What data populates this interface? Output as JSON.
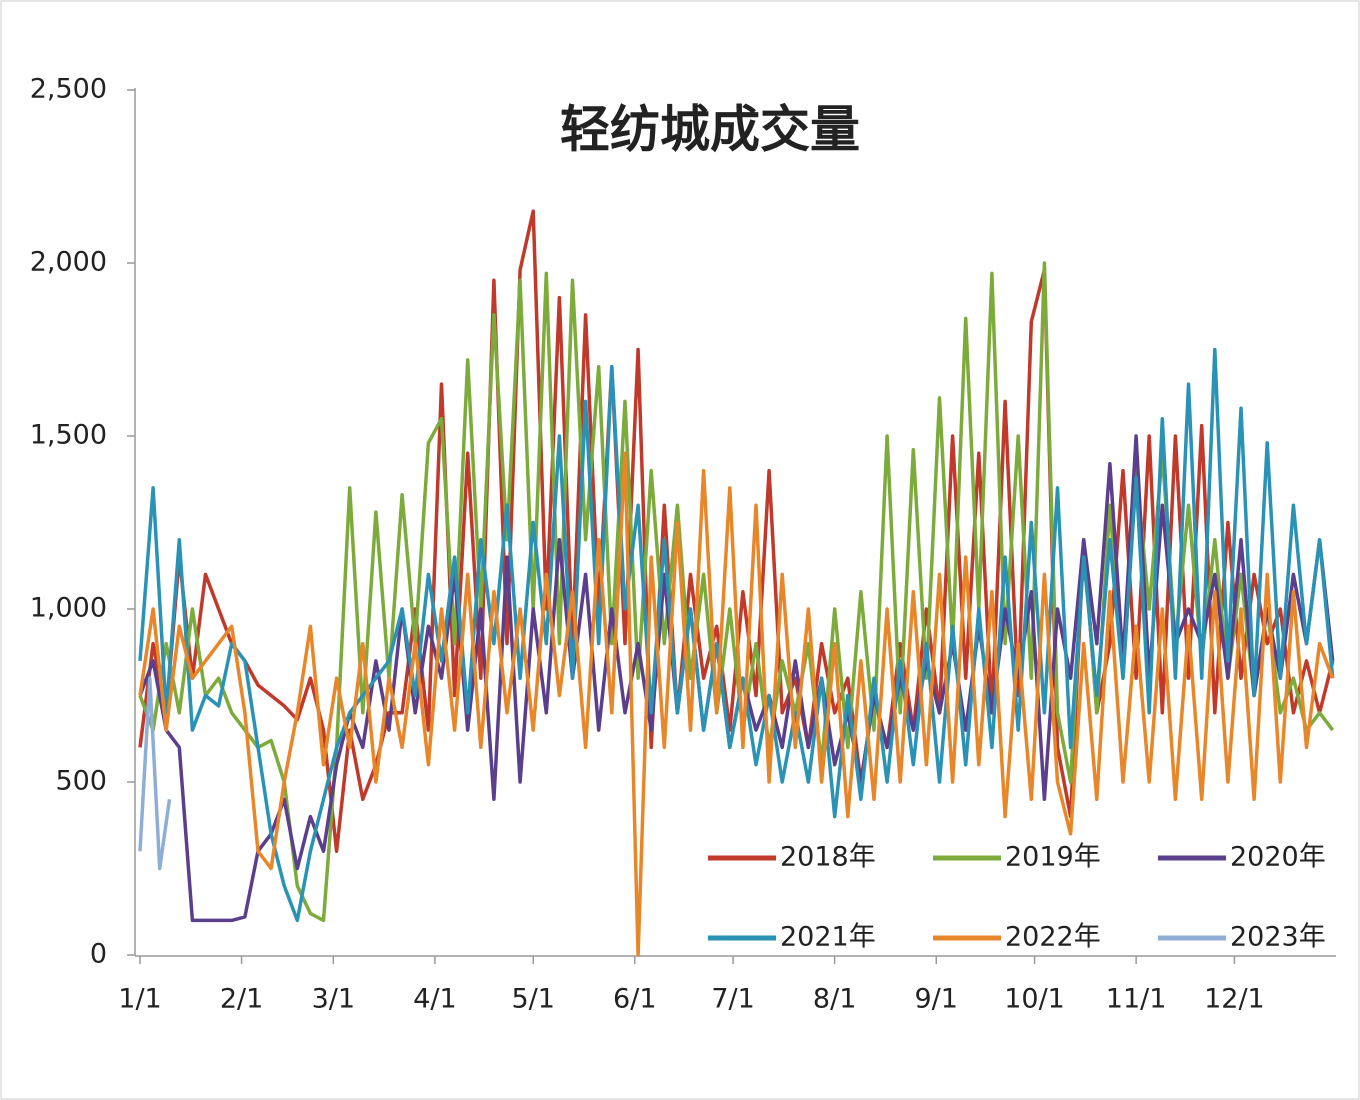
{
  "chart_data": {
    "type": "line",
    "title": "轻纺城成交量",
    "x": [
      0,
      4,
      8,
      12,
      16,
      20,
      24,
      28,
      32,
      36,
      40,
      44,
      48,
      52,
      56,
      60,
      64,
      68,
      72,
      76,
      80,
      84,
      88,
      92,
      96,
      100,
      104,
      108,
      112,
      116,
      120,
      124,
      128,
      132,
      136,
      140,
      144,
      148,
      152,
      156,
      160,
      164,
      168,
      172,
      176,
      180,
      184,
      188,
      192,
      196,
      200,
      204,
      208,
      212,
      216,
      220,
      224,
      228,
      232,
      236,
      240,
      244,
      248,
      252,
      256,
      260,
      264,
      268,
      272,
      276,
      280,
      284,
      288,
      292,
      296,
      300,
      304,
      308,
      312,
      316,
      320,
      324,
      328,
      332,
      336,
      340,
      344,
      348,
      352,
      356,
      360,
      364
    ],
    "xlim": [
      0,
      365
    ],
    "xticks": [
      {
        "value": 0,
        "label": "1/1"
      },
      {
        "value": 31,
        "label": "2/1"
      },
      {
        "value": 59,
        "label": "3/1"
      },
      {
        "value": 90,
        "label": "4/1"
      },
      {
        "value": 120,
        "label": "5/1"
      },
      {
        "value": 151,
        "label": "6/1"
      },
      {
        "value": 181,
        "label": "7/1"
      },
      {
        "value": 212,
        "label": "8/1"
      },
      {
        "value": 243,
        "label": "9/1"
      },
      {
        "value": 273,
        "label": "10/1"
      },
      {
        "value": 304,
        "label": "11/1"
      },
      {
        "value": 334,
        "label": "12/1"
      }
    ],
    "ylim": [
      0,
      2500
    ],
    "yticks": [
      0,
      500,
      {
        "value": 1000,
        "label": "1,000"
      },
      {
        "value": 1500,
        "label": "1,500"
      },
      {
        "value": 2000,
        "label": "2,000"
      },
      {
        "value": 2500,
        "label": "2,500"
      }
    ],
    "series": [
      {
        "name": "2018年",
        "color": "#c0392b",
        "values": [
          600,
          900,
          700,
          1150,
          800,
          1100,
          1000,
          900,
          850,
          780,
          750,
          720,
          680,
          800,
          650,
          300,
          650,
          450,
          550,
          700,
          700,
          1000,
          650,
          1650,
          750,
          1450,
          800,
          1950,
          900,
          1980,
          2150,
          1000,
          1900,
          900,
          1850,
          1000,
          1700,
          900,
          1750,
          600,
          1300,
          700,
          1100,
          800,
          950,
          650,
          1050,
          750,
          1400,
          700,
          800,
          600,
          900,
          700,
          800,
          500,
          750,
          600,
          900,
          650,
          1000,
          700,
          1500,
          800,
          1450,
          700,
          1600,
          750,
          1830,
          1980,
          600,
          400,
          1200,
          700,
          900,
          1400,
          800,
          1500,
          700,
          1500,
          800,
          1530,
          700,
          1250,
          800,
          1100,
          900,
          1000,
          700,
          850,
          700,
          850
        ]
      },
      {
        "name": "2019年",
        "color": "#7cab3c",
        "values": [
          750,
          650,
          900,
          700,
          1000,
          750,
          800,
          700,
          650,
          600,
          620,
          500,
          200,
          120,
          100,
          600,
          1350,
          700,
          1280,
          800,
          1330,
          900,
          1480,
          1550,
          900,
          1720,
          1000,
          1850,
          1200,
          1950,
          1000,
          1970,
          900,
          1950,
          1200,
          1700,
          900,
          1600,
          800,
          1400,
          900,
          1300,
          800,
          1100,
          700,
          1000,
          650,
          900,
          600,
          850,
          700,
          900,
          550,
          1000,
          600,
          1050,
          650,
          1500,
          700,
          1460,
          800,
          1610,
          900,
          1840,
          1000,
          1970,
          900,
          1500,
          800,
          2000,
          700,
          500,
          1200,
          700,
          1300,
          800,
          1400,
          1000,
          1450,
          900,
          1300,
          850,
          1200,
          800,
          1100,
          750,
          1000,
          700,
          800,
          650,
          700,
          650
        ]
      },
      {
        "name": "2020年",
        "color": "#5b3f8c",
        "values": [
          750,
          850,
          650,
          600,
          100,
          100,
          100,
          100,
          110,
          300,
          350,
          450,
          250,
          400,
          300,
          550,
          700,
          600,
          850,
          650,
          1000,
          700,
          950,
          800,
          1100,
          650,
          1000,
          450,
          1150,
          500,
          1000,
          700,
          1200,
          800,
          1100,
          650,
          1000,
          700,
          900,
          650,
          1100,
          700,
          1000,
          650,
          900,
          600,
          800,
          650,
          750,
          600,
          850,
          600,
          800,
          550,
          700,
          500,
          750,
          600,
          800,
          650,
          850,
          700,
          900,
          650,
          950,
          700,
          1000,
          800,
          1050,
          450,
          1000,
          800,
          1200,
          900,
          1420,
          850,
          1500,
          800,
          1300,
          900,
          1000,
          900,
          1100,
          800,
          1200,
          750,
          1000,
          800,
          1100,
          900,
          1200,
          850
        ]
      },
      {
        "name": "2021年",
        "color": "#2a93b5",
        "values": [
          850,
          1350,
          700,
          1200,
          650,
          750,
          720,
          900,
          850,
          600,
          350,
          200,
          100,
          300,
          450,
          600,
          700,
          750,
          800,
          850,
          1000,
          750,
          1100,
          850,
          1150,
          700,
          1200,
          900,
          1300,
          800,
          1250,
          900,
          1500,
          800,
          1600,
          900,
          1700,
          1000,
          1300,
          700,
          1200,
          700,
          1000,
          650,
          900,
          600,
          800,
          550,
          750,
          500,
          700,
          500,
          800,
          400,
          750,
          450,
          800,
          500,
          850,
          550,
          900,
          500,
          950,
          550,
          1000,
          600,
          1150,
          650,
          1250,
          700,
          1350,
          600,
          1150,
          750,
          1200,
          800,
          1380,
          700,
          1550,
          800,
          1650,
          800,
          1750,
          850,
          1580,
          750,
          1480,
          800,
          1300,
          900,
          1200,
          800
        ]
      },
      {
        "name": "2022年",
        "color": "#e8862a",
        "values": [
          750,
          1000,
          650,
          950,
          800,
          850,
          900,
          950,
          700,
          300,
          250,
          500,
          700,
          950,
          550,
          800,
          600,
          900,
          500,
          800,
          600,
          900,
          550,
          1000,
          650,
          1100,
          600,
          1050,
          700,
          1000,
          650,
          1100,
          750,
          1050,
          600,
          1200,
          700,
          1450,
          0,
          1150,
          600,
          1250,
          650,
          1400,
          700,
          1350,
          600,
          1300,
          500,
          1100,
          600,
          1000,
          500,
          900,
          400,
          850,
          450,
          1000,
          500,
          1050,
          550,
          1100,
          500,
          1150,
          550,
          1050,
          400,
          900,
          450,
          1100,
          500,
          350,
          900,
          450,
          1050,
          500,
          950,
          500,
          1000,
          450,
          950,
          450,
          1050,
          500,
          1000,
          450,
          1100,
          500,
          1050,
          600,
          900,
          800
        ]
      },
      {
        "name": "2023年",
        "color": "#8faed6",
        "x": [
          0,
          3,
          6,
          9
        ],
        "values": [
          300,
          800,
          250,
          450
        ]
      }
    ]
  }
}
